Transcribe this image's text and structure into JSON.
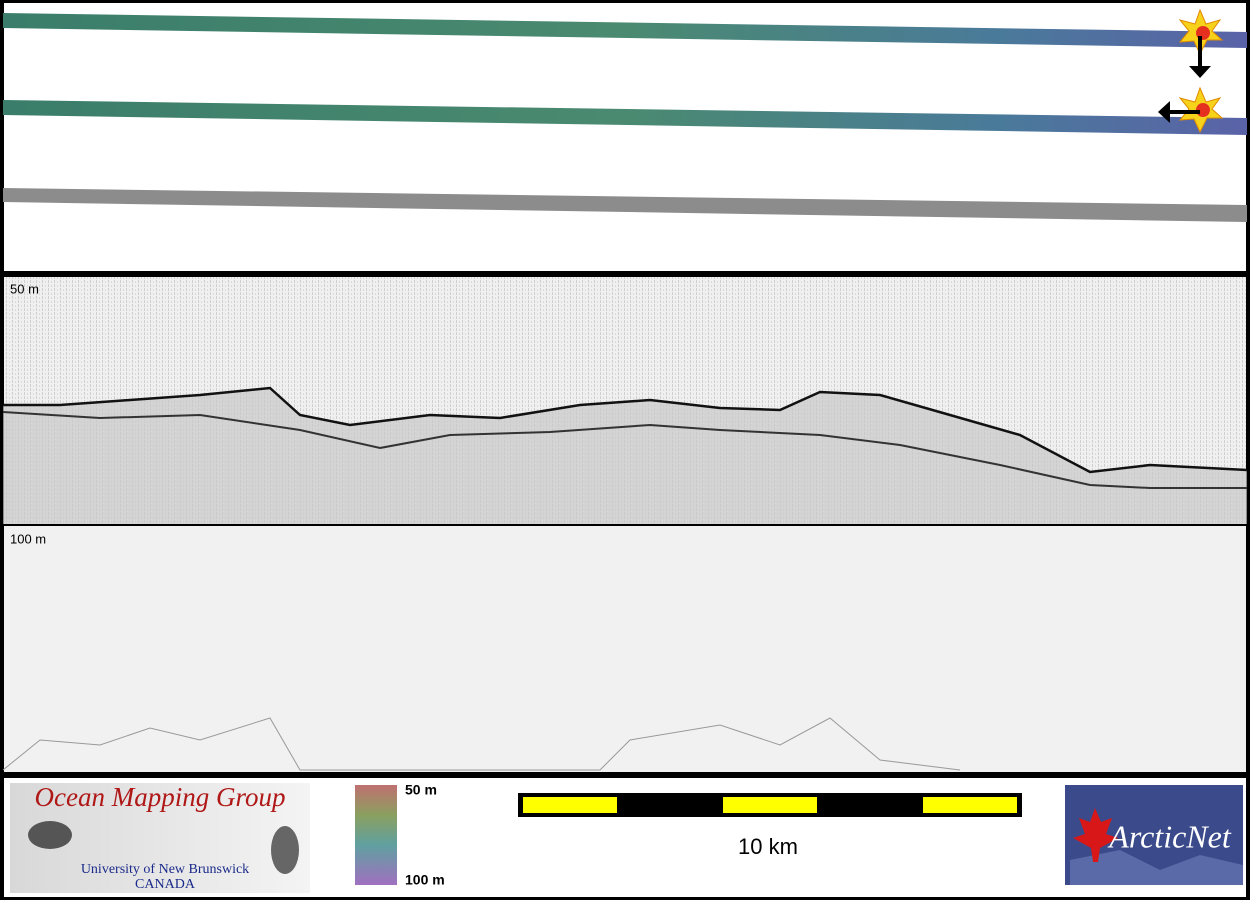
{
  "profile": {
    "upper_depth_label": "50 m",
    "lower_depth_label": "100 m"
  },
  "footer": {
    "left_logo": {
      "title": "Ocean Mapping Group",
      "line1": "University of New Brunswick",
      "line2": "CANADA"
    },
    "colorbar": {
      "top_label": "50 m",
      "bottom_label": "100 m"
    },
    "scale_bar": {
      "label": "10 km"
    },
    "right_logo": {
      "title": "ArcticNet"
    }
  }
}
